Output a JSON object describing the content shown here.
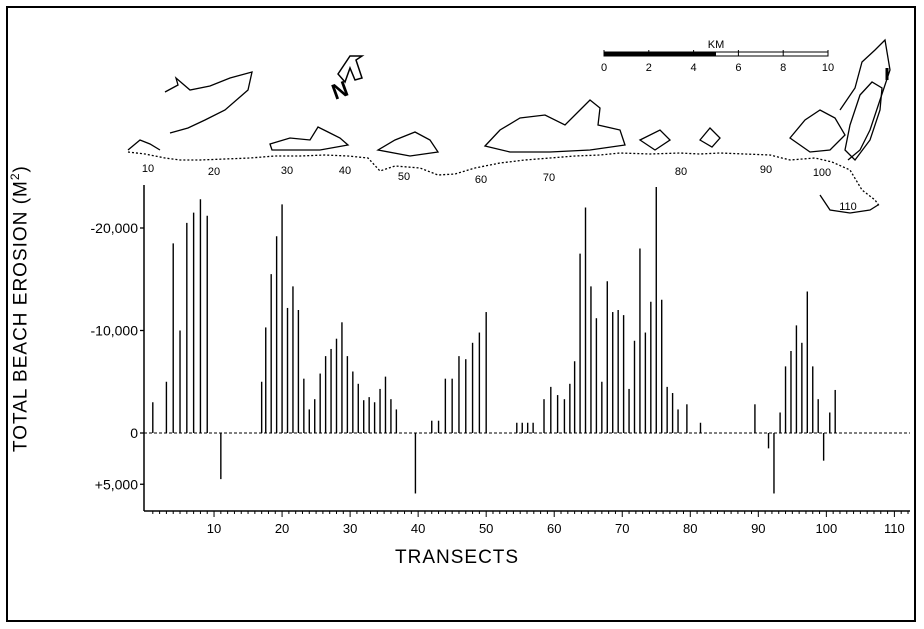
{
  "chart_data": {
    "type": "bar",
    "ylabel": "TOTAL BEACH EROSION",
    "ylabel_unit": "(M",
    "ylabel_exp": "2",
    "ylabel_close": ")",
    "xlabel": "TRANSECTS",
    "y_axis": "erosion plotted upward; accretion plotted downward",
    "yticks": [
      {
        "value": -20000,
        "label": "-20,000"
      },
      {
        "value": -10000,
        "label": "-10,000"
      },
      {
        "value": 0,
        "label": "0"
      },
      {
        "value": 5000,
        "label": "+5,000"
      }
    ],
    "xticks": [
      10,
      20,
      30,
      40,
      50,
      60,
      70,
      80,
      90,
      100,
      110
    ],
    "xlim": [
      0,
      112
    ],
    "ylim": [
      -24000,
      7000
    ],
    "values": [
      [
        1,
        -3000
      ],
      [
        3,
        -5000
      ],
      [
        4,
        -18500
      ],
      [
        5,
        -10000
      ],
      [
        6,
        -20500
      ],
      [
        7,
        -21500
      ],
      [
        8,
        -22800
      ],
      [
        9,
        -21200
      ],
      [
        11,
        4500
      ],
      [
        17,
        -5000
      ],
      [
        17.6,
        -10300
      ],
      [
        18.4,
        -15500
      ],
      [
        19.2,
        -19200
      ],
      [
        20,
        -22300
      ],
      [
        20.8,
        -12200
      ],
      [
        21.6,
        -14300
      ],
      [
        22.4,
        -12000
      ],
      [
        23.2,
        -5300
      ],
      [
        24,
        -2300
      ],
      [
        24.8,
        -3300
      ],
      [
        25.6,
        -5800
      ],
      [
        26.4,
        -7500
      ],
      [
        27.2,
        -8200
      ],
      [
        28,
        -9200
      ],
      [
        28.8,
        -10800
      ],
      [
        29.6,
        -7500
      ],
      [
        30.4,
        -6000
      ],
      [
        31.2,
        -4800
      ],
      [
        32,
        -3200
      ],
      [
        32.8,
        -3500
      ],
      [
        33.6,
        -3000
      ],
      [
        34.4,
        -4300
      ],
      [
        35.2,
        -5500
      ],
      [
        36,
        -3300
      ],
      [
        36.8,
        -2300
      ],
      [
        39.6,
        5900
      ],
      [
        42,
        -1200
      ],
      [
        43,
        -1200
      ],
      [
        44,
        -5300
      ],
      [
        45,
        -5300
      ],
      [
        46,
        -7500
      ],
      [
        47,
        -7200
      ],
      [
        48,
        -8800
      ],
      [
        49,
        -9800
      ],
      [
        50,
        -11800
      ],
      [
        54.5,
        -1000
      ],
      [
        55.3,
        -1000
      ],
      [
        56.1,
        -1000
      ],
      [
        56.9,
        -1000
      ],
      [
        58.5,
        -3300
      ],
      [
        59.5,
        -4500
      ],
      [
        60.5,
        -3700
      ],
      [
        61.5,
        -3300
      ],
      [
        62.3,
        -4800
      ],
      [
        63,
        -7000
      ],
      [
        63.8,
        -17500
      ],
      [
        64.6,
        -22000
      ],
      [
        65.4,
        -14300
      ],
      [
        66.2,
        -11200
      ],
      [
        67,
        -5000
      ],
      [
        67.8,
        -14800
      ],
      [
        68.6,
        -11800
      ],
      [
        69.4,
        -12000
      ],
      [
        70.2,
        -11500
      ],
      [
        71,
        -4300
      ],
      [
        71.8,
        -9000
      ],
      [
        72.6,
        -18000
      ],
      [
        73.4,
        -9800
      ],
      [
        74.2,
        -12800
      ],
      [
        75,
        -24000
      ],
      [
        75.8,
        -13000
      ],
      [
        76.6,
        -4500
      ],
      [
        77.4,
        -3900
      ],
      [
        78.2,
        -2300
      ],
      [
        79.5,
        -2800
      ],
      [
        81.5,
        -1000
      ],
      [
        89.5,
        -2800
      ],
      [
        91.5,
        1500
      ],
      [
        92.3,
        5900
      ],
      [
        93.2,
        -2000
      ],
      [
        94,
        -6500
      ],
      [
        94.8,
        -8000
      ],
      [
        95.6,
        -10500
      ],
      [
        96.4,
        -8800
      ],
      [
        97.2,
        -13800
      ],
      [
        98,
        -6500
      ],
      [
        98.8,
        -3300
      ],
      [
        99.6,
        2700
      ],
      [
        100.5,
        -2000
      ],
      [
        101.3,
        -4200
      ]
    ]
  },
  "map": {
    "north_label": "N",
    "scale_title": "KM",
    "scale_ticks": [
      "0",
      "2",
      "4",
      "6",
      "8",
      "10"
    ],
    "transect_labels": [
      "10",
      "20",
      "30",
      "40",
      "50",
      "60",
      "70",
      "80",
      "90",
      "100",
      "110"
    ]
  }
}
